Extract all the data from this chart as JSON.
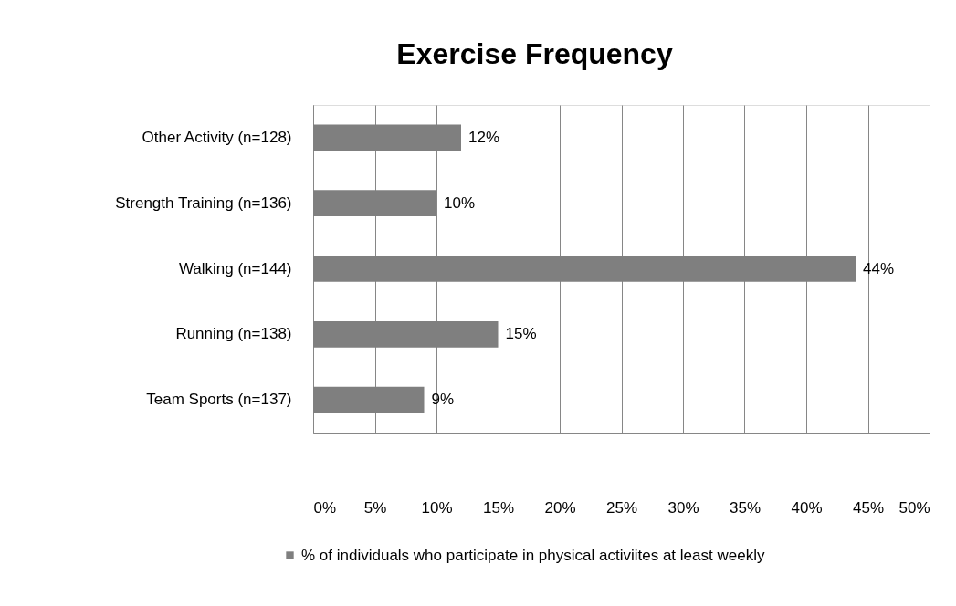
{
  "chart_data": {
    "type": "bar",
    "orientation": "horizontal",
    "title": "Exercise Frequency",
    "categories": [
      "Other Activity (n=128)",
      "Strength Training (n=136)",
      "Walking (n=144)",
      "Running (n=138)",
      "Team Sports (n=137)"
    ],
    "series": [
      {
        "name": "% of individuals who participate in physical activiites at least weekly",
        "color": "#7f7f7f",
        "values": [
          12,
          10,
          44,
          15,
          9
        ],
        "value_labels": [
          "12%",
          "10%",
          "44%",
          "15%",
          "9%"
        ]
      }
    ],
    "xlim": [
      0,
      50
    ],
    "xticks": [
      {
        "value": 0,
        "label": "0%"
      },
      {
        "value": 5,
        "label": "5%"
      },
      {
        "value": 10,
        "label": "10%"
      },
      {
        "value": 15,
        "label": "15%"
      },
      {
        "value": 20,
        "label": "20%"
      },
      {
        "value": 25,
        "label": "25%"
      },
      {
        "value": 30,
        "label": "30%"
      },
      {
        "value": 35,
        "label": "35%"
      },
      {
        "value": 40,
        "label": "40%"
      },
      {
        "value": 45,
        "label": "45%"
      },
      {
        "value": 50,
        "label": "50%"
      }
    ],
    "grid": "x",
    "legend": "bottom"
  }
}
